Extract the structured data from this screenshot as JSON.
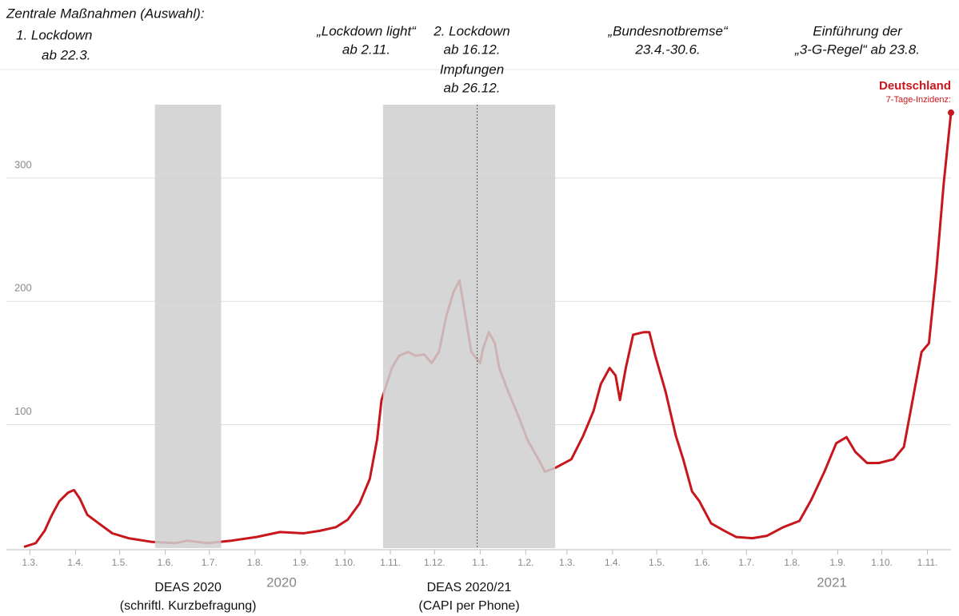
{
  "chart_data": {
    "type": "line",
    "title": "Zentrale Maßnahmen (Auswahl):",
    "annotations": [
      {
        "lines": [
          "1. Lockdown",
          "ab 22.3."
        ]
      },
      {
        "lines": [
          "„Lockdown light“",
          "ab 2.11."
        ]
      },
      {
        "lines": [
          "2. Lockdown",
          "ab 16.12.",
          "Impfungen",
          "ab 26.12."
        ]
      },
      {
        "lines": [
          "„Bundesnotbremse“",
          "23.4.-30.6."
        ]
      },
      {
        "lines": [
          "Einführung der",
          "„3-G-Regel“ ab 23.8."
        ]
      }
    ],
    "x": [
      -4,
      4,
      10,
      15,
      20,
      26,
      30,
      34,
      39,
      48,
      56,
      67,
      83,
      99,
      107,
      121,
      137,
      154,
      170,
      186,
      197,
      208,
      216,
      224,
      231,
      236,
      239,
      246,
      251,
      257,
      262,
      268,
      273,
      278,
      283,
      288,
      292,
      296,
      300,
      306,
      308,
      312,
      316,
      319,
      325,
      333,
      338,
      347,
      350,
      357,
      368,
      376,
      383,
      388,
      394,
      398,
      401,
      405,
      410,
      417,
      421,
      425,
      432,
      439,
      444,
      450,
      455,
      463,
      472,
      480,
      491,
      501,
      512,
      523,
      531,
      540,
      548,
      555,
      561,
      569,
      577,
      587,
      594,
      599,
      606,
      611,
      616,
      621,
      626
    ],
    "series": [
      {
        "name": "Deutschland",
        "label": "7-Tage-Inzidenz:",
        "color": "#c8161d",
        "values": [
          1,
          4,
          14,
          27,
          38,
          45,
          47,
          40,
          27,
          19,
          12,
          8,
          5,
          4,
          6,
          4,
          6,
          9,
          13,
          12,
          14,
          17,
          23,
          36,
          56,
          88,
          120,
          146,
          156,
          159,
          156,
          157,
          150,
          159,
          188,
          208,
          217,
          188,
          159,
          150,
          162,
          175,
          166,
          146,
          127,
          104,
          88,
          69,
          62,
          65,
          72,
          91,
          111,
          133,
          146,
          140,
          120,
          146,
          173,
          175,
          175,
          156,
          127,
          91,
          72,
          46,
          38,
          20,
          14,
          9,
          8,
          10,
          17,
          22,
          39,
          62,
          85,
          90,
          78,
          69,
          69,
          72,
          82,
          114,
          159,
          166,
          224,
          295,
          353
        ]
      }
    ],
    "xlim": [
      -4,
      626
    ],
    "xticks": [
      {
        "value": 0,
        "label": "1.3."
      },
      {
        "value": 31,
        "label": "1.4."
      },
      {
        "value": 61,
        "label": "1.5."
      },
      {
        "value": 92,
        "label": "1.6."
      },
      {
        "value": 122,
        "label": "1.7."
      },
      {
        "value": 153,
        "label": "1.8."
      },
      {
        "value": 184,
        "label": "1.9."
      },
      {
        "value": 214,
        "label": "1.10."
      },
      {
        "value": 245,
        "label": "1.11."
      },
      {
        "value": 275,
        "label": "1.12."
      },
      {
        "value": 306,
        "label": "1.1."
      },
      {
        "value": 337,
        "label": "1.2."
      },
      {
        "value": 365,
        "label": "1.3."
      },
      {
        "value": 396,
        "label": "1.4."
      },
      {
        "value": 426,
        "label": "1.5."
      },
      {
        "value": 457,
        "label": "1.6."
      },
      {
        "value": 487,
        "label": "1.7."
      },
      {
        "value": 518,
        "label": "1.8."
      },
      {
        "value": 549,
        "label": "1.9."
      },
      {
        "value": 579,
        "label": "1.10."
      },
      {
        "value": 610,
        "label": "1.11."
      }
    ],
    "year_labels": [
      {
        "value": 171,
        "label": "2020"
      },
      {
        "value": 545,
        "label": "2021"
      }
    ],
    "ylim": [
      0,
      388
    ],
    "yticks": [
      100,
      200,
      300
    ],
    "grid": true,
    "bands": [
      {
        "start": 85,
        "end": 130,
        "label": "DEAS 2020",
        "sublabel": "(schriftl. Kurzbefragung)"
      },
      {
        "start": 240,
        "end": 357,
        "label": "DEAS 2020/21",
        "sublabel": "(CAPI per Phone)"
      }
    ],
    "marker_line": 304
  }
}
